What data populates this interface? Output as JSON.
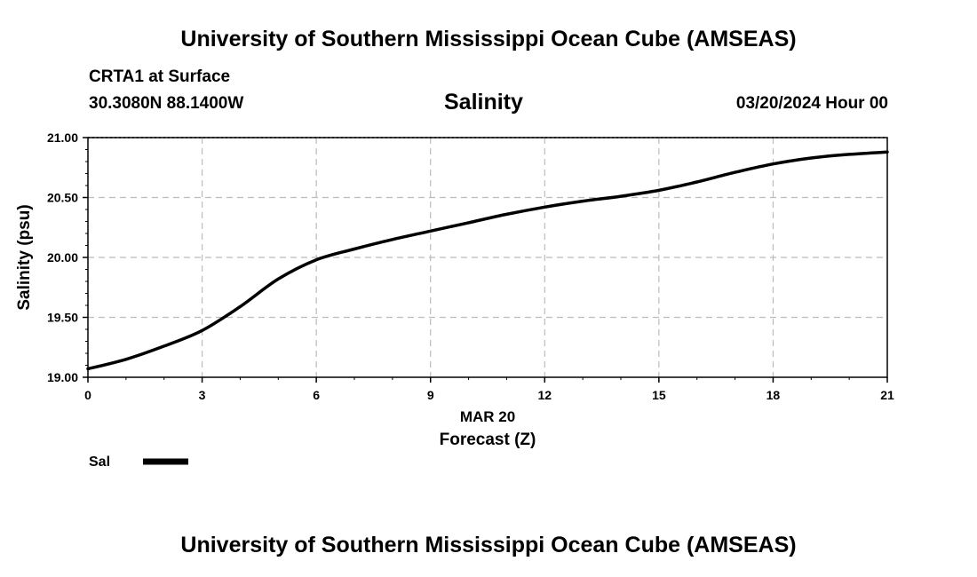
{
  "header": {
    "title_top": "University of Southern Mississippi Ocean Cube (AMSEAS)",
    "title_bottom": "University of Southern Mississippi Ocean Cube (AMSEAS)",
    "station": "CRTA1 at Surface",
    "location": "30.3080N  88.1400W",
    "datetime": "03/20/2024 Hour 00"
  },
  "chart_data": {
    "type": "line",
    "title": "Salinity",
    "xlabel": "Forecast (Z)",
    "xdate_label": "MAR 20",
    "ylabel": "Salinity (psu)",
    "xlim": [
      0,
      21
    ],
    "ylim": [
      19.0,
      21.0
    ],
    "x_ticks": [
      0,
      3,
      6,
      9,
      12,
      15,
      18,
      21
    ],
    "x_tick_labels": [
      "0",
      "3",
      "6",
      "9",
      "12",
      "15",
      "18",
      "21"
    ],
    "y_ticks": [
      19.0,
      19.5,
      20.0,
      20.5,
      21.0
    ],
    "y_tick_labels": [
      "19.00",
      "19.50",
      "20.00",
      "20.50",
      "21.00"
    ],
    "grid": true,
    "series": [
      {
        "name": "Sal",
        "color": "#000000",
        "x": [
          0,
          1,
          2,
          3,
          4,
          5,
          6,
          7,
          8,
          9,
          10,
          11,
          12,
          13,
          14,
          15,
          16,
          17,
          18,
          19,
          20,
          21
        ],
        "values": [
          19.07,
          19.15,
          19.26,
          19.39,
          19.59,
          19.82,
          19.98,
          20.07,
          20.15,
          20.22,
          20.29,
          20.36,
          20.42,
          20.47,
          20.51,
          20.56,
          20.63,
          20.71,
          20.78,
          20.83,
          20.86,
          20.88
        ]
      }
    ],
    "legend": {
      "position": "bottom-left"
    }
  }
}
